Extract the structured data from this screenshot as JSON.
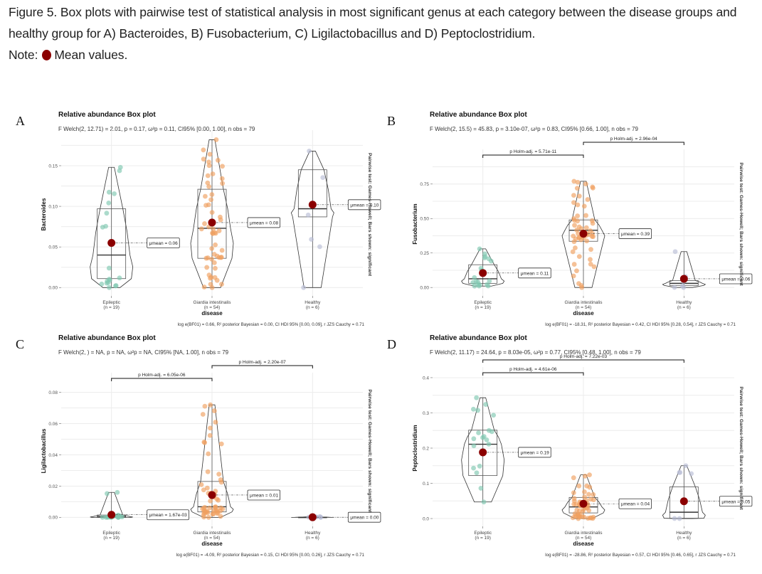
{
  "caption": {
    "figure_label": "Figure 5",
    "text": ". Box plots with pairwise test of statistical analysis in most significant genus at each category between the disease groups and healthy group for A) Bacteroides, B) Fusobacterium, C) Ligilactobacillus and D) Peptoclostridium.",
    "note_label": "Note:",
    "note_text": "Mean values.",
    "mean_marker_color": "#8b0000"
  },
  "colors": {
    "epileptic": "#7fc8b0",
    "giardia": "#f0a060",
    "healthy": "#b8bdd6",
    "mean": "#8b0000",
    "grid": "#ececec",
    "box": "#555555"
  },
  "chart_data": [
    {
      "panel": "A",
      "type": "box",
      "title": "Relative abundance Box plot",
      "subtitle": "F Welch(2, 12.71) = 2.01, p = 0.17, ω²p = 0.11, CI95% [0.00, 1.00], n obs = 79",
      "ylabel": "Bacteroides",
      "xlabel": "disease",
      "ylim": [
        -0.005,
        0.185
      ],
      "yticks": [
        0.0,
        0.05,
        0.1,
        0.15
      ],
      "ytick_labels": [
        "0.00",
        "0.05",
        "0.10",
        "0.15"
      ],
      "categories": [
        "Epileptic",
        "Giardia intestinalis",
        "Healthy"
      ],
      "n_labels": [
        "(n = 19)",
        "(n = 54)",
        "(n = 6)"
      ],
      "boxes": [
        {
          "q1": 0.011,
          "median": 0.04,
          "q3": 0.097,
          "min": 0.0,
          "max": 0.148,
          "mean": 0.055,
          "mean_label": "μmean = 0.06"
        },
        {
          "q1": 0.036,
          "median": 0.073,
          "q3": 0.121,
          "min": 0.0,
          "max": 0.182,
          "mean": 0.08,
          "mean_label": "μmean = 0.08"
        },
        {
          "q1": 0.087,
          "median": 0.097,
          "q3": 0.145,
          "min": 0.0,
          "max": 0.168,
          "mean": 0.102,
          "mean_label": "μmean = 0.10"
        }
      ],
      "pairwise": [],
      "side_text": "Pairwise test: Games-Howell; Bars shown: significant",
      "bayes_text": "log e(BF01) = 0.66, R² posterior Bayesian = 0.00, CI HDI 95% [0.00, 0.09], r JZS Cauchy = 0.71"
    },
    {
      "panel": "B",
      "type": "box",
      "title": "Relative abundance Box plot",
      "subtitle": "F Welch(2, 15.5) = 45.83, p = 3.10e-07, ω²p = 0.83, CI95% [0.66, 1.00], n obs = 79",
      "ylabel": "Fusobacterium",
      "xlabel": "disease",
      "ylim": [
        -0.03,
        0.95
      ],
      "yticks": [
        0.0,
        0.25,
        0.5,
        0.75
      ],
      "ytick_labels": [
        "0.00",
        "0.25",
        "0.50",
        "0.75"
      ],
      "categories": [
        "Epileptic",
        "Giardia intestinalis",
        "Healthy"
      ],
      "n_labels": [
        "(n = 19)",
        "(n = 54)",
        "(n = 6)"
      ],
      "boxes": [
        {
          "q1": 0.03,
          "median": 0.063,
          "q3": 0.165,
          "min": 0.01,
          "max": 0.28,
          "mean": 0.105,
          "mean_label": "μmean = 0.11"
        },
        {
          "q1": 0.335,
          "median": 0.415,
          "q3": 0.49,
          "min": 0.0,
          "max": 0.77,
          "mean": 0.39,
          "mean_label": "μmean = 0.39"
        },
        {
          "q1": 0.015,
          "median": 0.03,
          "q3": 0.05,
          "min": 0.0,
          "max": 0.26,
          "mean": 0.063,
          "mean_label": "μmean = 0.06"
        }
      ],
      "pairwise": [
        {
          "from": 0,
          "to": 1,
          "label": "p Holm-adj. = 5.71e-11",
          "level": 0
        },
        {
          "from": 1,
          "to": 2,
          "label": "p Holm-adj. = 2.96e-04",
          "level": 1
        }
      ],
      "side_text": "Pairwise test: Games-Howell; Bars shown: significant",
      "bayes_text": "log e(BF01) = -18.31, R² posterior Bayesian = 0.42, CI HDI 95% [0.28, 0.54], r JZS Cauchy = 0.71"
    },
    {
      "panel": "C",
      "type": "box",
      "title": "Relative abundance Box plot",
      "subtitle": "F Welch(2, ) = NA, p = NA, ω²p = NA, CI95% [NA, 1.00], n obs = 79",
      "ylabel": "Ligilactobacillus",
      "xlabel": "disease",
      "ylim": [
        -0.003,
        0.088
      ],
      "yticks": [
        0.0,
        0.02,
        0.04,
        0.06,
        0.08
      ],
      "ytick_labels": [
        "0.00",
        "0.02",
        "0.04",
        "0.06",
        "0.08"
      ],
      "categories": [
        "Epileptic",
        "Giardia intestinalis",
        "Healthy"
      ],
      "n_labels": [
        "(n = 19)",
        "(n = 54)",
        "(n = 6)"
      ],
      "boxes": [
        {
          "q1": 0.0,
          "median": 0.0005,
          "q3": 0.0015,
          "min": 0.0,
          "max": 0.016,
          "mean": 0.00167,
          "mean_label": "μmean = 1.67e-03"
        },
        {
          "q1": 0.0035,
          "median": 0.0068,
          "q3": 0.023,
          "min": 0.0,
          "max": 0.072,
          "mean": 0.0143,
          "mean_label": "μmean = 0.01"
        },
        {
          "q1": 0.0,
          "median": 0.0,
          "q3": 0.0002,
          "min": 0.0,
          "max": 0.0005,
          "mean": 0.0001,
          "mean_label": "μmean = 0.00"
        }
      ],
      "pairwise": [
        {
          "from": 0,
          "to": 1,
          "label": "p Holm-adj. = 6.05e-06",
          "level": 0
        },
        {
          "from": 1,
          "to": 2,
          "label": "p Holm-adj. = 2.20e-07",
          "level": 1
        }
      ],
      "side_text": "Pairwise test: Games-Howell; Bars shown: significant",
      "bayes_text": "log e(BF01) = -4.09, R² posterior Bayesian = 0.15, CI HDI 95% [0.00, 0.26], r JZS Cauchy = 0.71"
    },
    {
      "panel": "D",
      "type": "box",
      "title": "Relative abundance Box plot",
      "subtitle": "F Welch(2, 11.17) = 24.64, p = 8.03e-05, ω²p = 0.77, CI95% [0.48, 1.00], n obs = 79",
      "ylabel": "Peptoclostridium",
      "xlabel": "disease",
      "ylim": [
        -0.01,
        0.41
      ],
      "yticks": [
        0.0,
        0.1,
        0.2,
        0.3,
        0.4
      ],
      "ytick_labels": [
        "0.0",
        "0.1",
        "0.2",
        "0.3",
        "0.4"
      ],
      "categories": [
        "Epileptic",
        "Giardia intestinalis",
        "Healthy"
      ],
      "n_labels": [
        "(n = 19)",
        "(n = 54)",
        "(n = 6)"
      ],
      "boxes": [
        {
          "q1": 0.122,
          "median": 0.211,
          "q3": 0.251,
          "min": 0.047,
          "max": 0.343,
          "mean": 0.188,
          "mean_label": "μmean = 0.19"
        },
        {
          "q1": 0.016,
          "median": 0.033,
          "q3": 0.06,
          "min": 0.0,
          "max": 0.124,
          "mean": 0.042,
          "mean_label": "μmean = 0.04"
        },
        {
          "q1": 0.001,
          "median": 0.018,
          "q3": 0.09,
          "min": 0.0,
          "max": 0.15,
          "mean": 0.049,
          "mean_label": "μmean = 0.05"
        }
      ],
      "pairwise": [
        {
          "from": 0,
          "to": 1,
          "label": "p Holm-adj. = 4.61e-06",
          "level": 0
        },
        {
          "from": 0,
          "to": 2,
          "label": "p Holm-adj. = 7.22e-03",
          "level": 1
        }
      ],
      "side_text": "Pairwise test: Games-Howell; Bars shown: significant",
      "bayes_text": "log e(BF01) = -28.86, R² posterior Bayesian = 0.57, CI HDI 95% [0.46, 0.65], r JZS Cauchy = 0.71"
    }
  ]
}
